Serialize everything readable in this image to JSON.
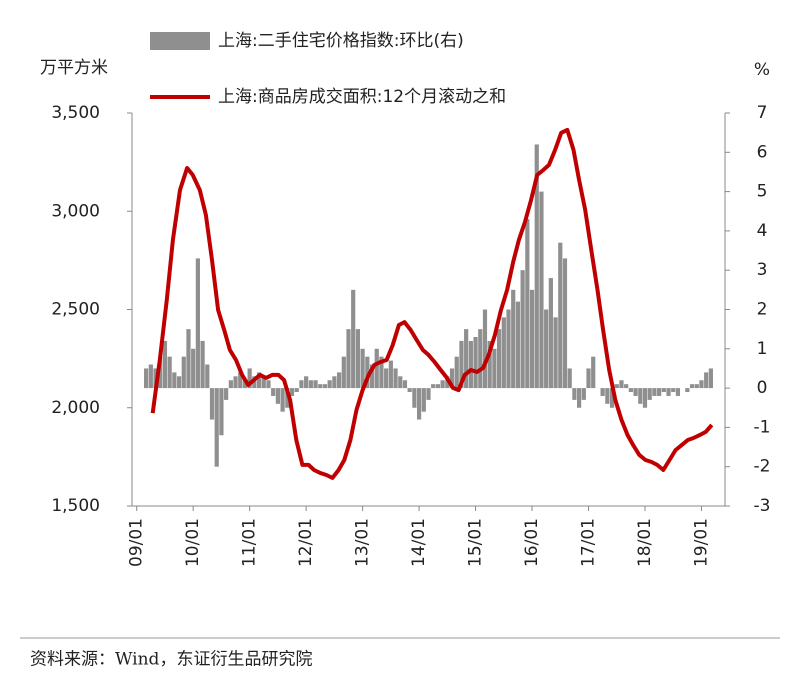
{
  "chart_data": {
    "type": "combo",
    "y_label": "万平方米",
    "y2_label": "%",
    "source": "资料来源：Wind，东证衍生品研究院",
    "xlim": [
      -1,
      125
    ],
    "xticks": [
      {
        "value": 0,
        "label": "09/01"
      },
      {
        "value": 12,
        "label": "10/01"
      },
      {
        "value": 24,
        "label": "11/01"
      },
      {
        "value": 36,
        "label": "12/01"
      },
      {
        "value": 48,
        "label": "13/01"
      },
      {
        "value": 60,
        "label": "14/01"
      },
      {
        "value": 72,
        "label": "15/01"
      },
      {
        "value": 84,
        "label": "16/01"
      },
      {
        "value": 96,
        "label": "17/01"
      },
      {
        "value": 108,
        "label": "18/01"
      },
      {
        "value": 120,
        "label": "19/01"
      }
    ],
    "ylim": [
      1500,
      3500
    ],
    "yticks": [
      {
        "value": 1500,
        "label": "1,500"
      },
      {
        "value": 2000,
        "label": "2,000"
      },
      {
        "value": 2500,
        "label": "2,500"
      },
      {
        "value": 3000,
        "label": "3,000"
      },
      {
        "value": 3500,
        "label": "3,500"
      }
    ],
    "y2lim": [
      -3,
      7
    ],
    "y2ticks": [
      -3,
      -2,
      -1,
      0,
      1,
      2,
      3,
      4,
      5,
      6,
      7
    ],
    "series": [
      {
        "name": "上海:二手住宅价格指数:环比(右)",
        "type": "bar",
        "axis": "y2",
        "color": "#8f8f8f",
        "x": [
          2,
          3,
          4,
          5,
          6,
          7,
          8,
          9,
          10,
          11,
          12,
          13,
          14,
          15,
          16,
          17,
          18,
          19,
          20,
          21,
          22,
          23,
          24,
          25,
          26,
          27,
          28,
          29,
          30,
          31,
          32,
          33,
          34,
          35,
          36,
          37,
          38,
          39,
          40,
          41,
          42,
          43,
          44,
          45,
          46,
          47,
          48,
          49,
          50,
          51,
          52,
          53,
          54,
          55,
          56,
          57,
          58,
          59,
          60,
          61,
          62,
          63,
          64,
          65,
          66,
          67,
          68,
          69,
          70,
          71,
          72,
          73,
          74,
          75,
          76,
          77,
          78,
          79,
          80,
          81,
          82,
          83,
          84,
          85,
          86,
          87,
          88,
          89,
          90,
          91,
          92,
          93,
          94,
          95,
          96,
          97,
          98,
          99,
          100,
          101,
          102,
          103,
          104,
          105,
          106,
          107,
          108,
          109,
          110,
          111,
          112,
          113,
          114,
          115,
          116,
          117,
          118,
          119,
          120,
          121,
          122
        ],
        "values": [
          0.5,
          0.6,
          0.5,
          0.8,
          1.2,
          0.8,
          0.4,
          0.3,
          0.8,
          1.5,
          1.0,
          3.3,
          1.2,
          0.6,
          -0.8,
          -2.0,
          -1.2,
          -0.3,
          0.2,
          0.3,
          0.4,
          0.2,
          0.5,
          0.3,
          0.4,
          0.3,
          0.2,
          -0.2,
          -0.4,
          -0.6,
          -0.5,
          -0.2,
          -0.1,
          0.2,
          0.3,
          0.2,
          0.2,
          0.1,
          0.1,
          0.2,
          0.3,
          0.4,
          0.8,
          1.5,
          2.5,
          1.5,
          1.0,
          0.8,
          0.6,
          1.0,
          0.8,
          0.5,
          0.7,
          0.5,
          0.3,
          0.2,
          -0.1,
          -0.5,
          -0.8,
          -0.6,
          -0.3,
          0.1,
          0.1,
          0.2,
          0.3,
          0.5,
          0.8,
          1.2,
          1.5,
          1.2,
          1.3,
          1.5,
          2.0,
          1.2,
          1.0,
          1.5,
          1.8,
          2.0,
          2.5,
          2.2,
          3.0,
          4.3,
          2.5,
          6.2,
          5.0,
          2.0,
          2.8,
          1.8,
          3.7,
          3.3,
          0.5,
          -0.3,
          -0.5,
          -0.3,
          0.5,
          0.8,
          0.0,
          -0.2,
          -0.4,
          -0.5,
          0.1,
          0.2,
          0.1,
          -0.1,
          -0.2,
          -0.4,
          -0.5,
          -0.3,
          -0.2,
          -0.2,
          -0.1,
          -0.2,
          -0.1,
          -0.2,
          0.0,
          -0.1,
          0.1,
          0.1,
          0.2,
          0.4,
          0.5
        ]
      },
      {
        "name": "上海:商品房成交面积:12个月滚动之和",
        "type": "line",
        "axis": "y",
        "color": "#c00000",
        "x": [
          3.4,
          4.9,
          6.4,
          7.7,
          9.2,
          10.7,
          11.9,
          13.4,
          14.7,
          16.0,
          17.3,
          18.6,
          19.8,
          21.1,
          22.4,
          23.7,
          24.9,
          26.2,
          27.5,
          28.8,
          30.1,
          31.3,
          32.6,
          33.9,
          35.2,
          36.5,
          37.7,
          39.0,
          40.3,
          41.6,
          42.9,
          44.1,
          45.4,
          46.7,
          48.0,
          49.3,
          50.5,
          51.8,
          53.1,
          54.4,
          55.7,
          56.9,
          58.2,
          59.5,
          60.8,
          62.0,
          63.3,
          64.6,
          65.9,
          67.2,
          68.4,
          69.7,
          71.0,
          72.3,
          73.6,
          74.8,
          76.1,
          77.4,
          78.7,
          80.0,
          81.2,
          82.5,
          83.8,
          85.1,
          86.4,
          87.6,
          88.9,
          90.2,
          91.5,
          92.8,
          94.0,
          95.3,
          96.6,
          97.9,
          99.1,
          100.4,
          101.7,
          103.0,
          104.3,
          105.5,
          106.8,
          108.1,
          109.4,
          110.6,
          111.9,
          113.2,
          114.5,
          115.8,
          117.1,
          118.3,
          119.6,
          120.9,
          122.2
        ],
        "values": [
          1973,
          2243,
          2549,
          2854,
          3108,
          3220,
          3185,
          3108,
          2981,
          2752,
          2498,
          2396,
          2294,
          2243,
          2167,
          2116,
          2141,
          2167,
          2152,
          2167,
          2167,
          2141,
          2040,
          1836,
          1709,
          1709,
          1683,
          1668,
          1658,
          1643,
          1683,
          1734,
          1836,
          1989,
          2090,
          2167,
          2218,
          2233,
          2243,
          2319,
          2421,
          2436,
          2396,
          2345,
          2294,
          2269,
          2233,
          2192,
          2152,
          2101,
          2090,
          2167,
          2192,
          2182,
          2203,
          2269,
          2370,
          2498,
          2600,
          2742,
          2854,
          2946,
          3058,
          3185,
          3210,
          3236,
          3312,
          3399,
          3414,
          3312,
          3159,
          3007,
          2803,
          2600,
          2396,
          2192,
          2040,
          1938,
          1861,
          1810,
          1760,
          1734,
          1724,
          1709,
          1683,
          1734,
          1785,
          1810,
          1836,
          1846,
          1861,
          1877,
          1912
        ]
      }
    ]
  }
}
